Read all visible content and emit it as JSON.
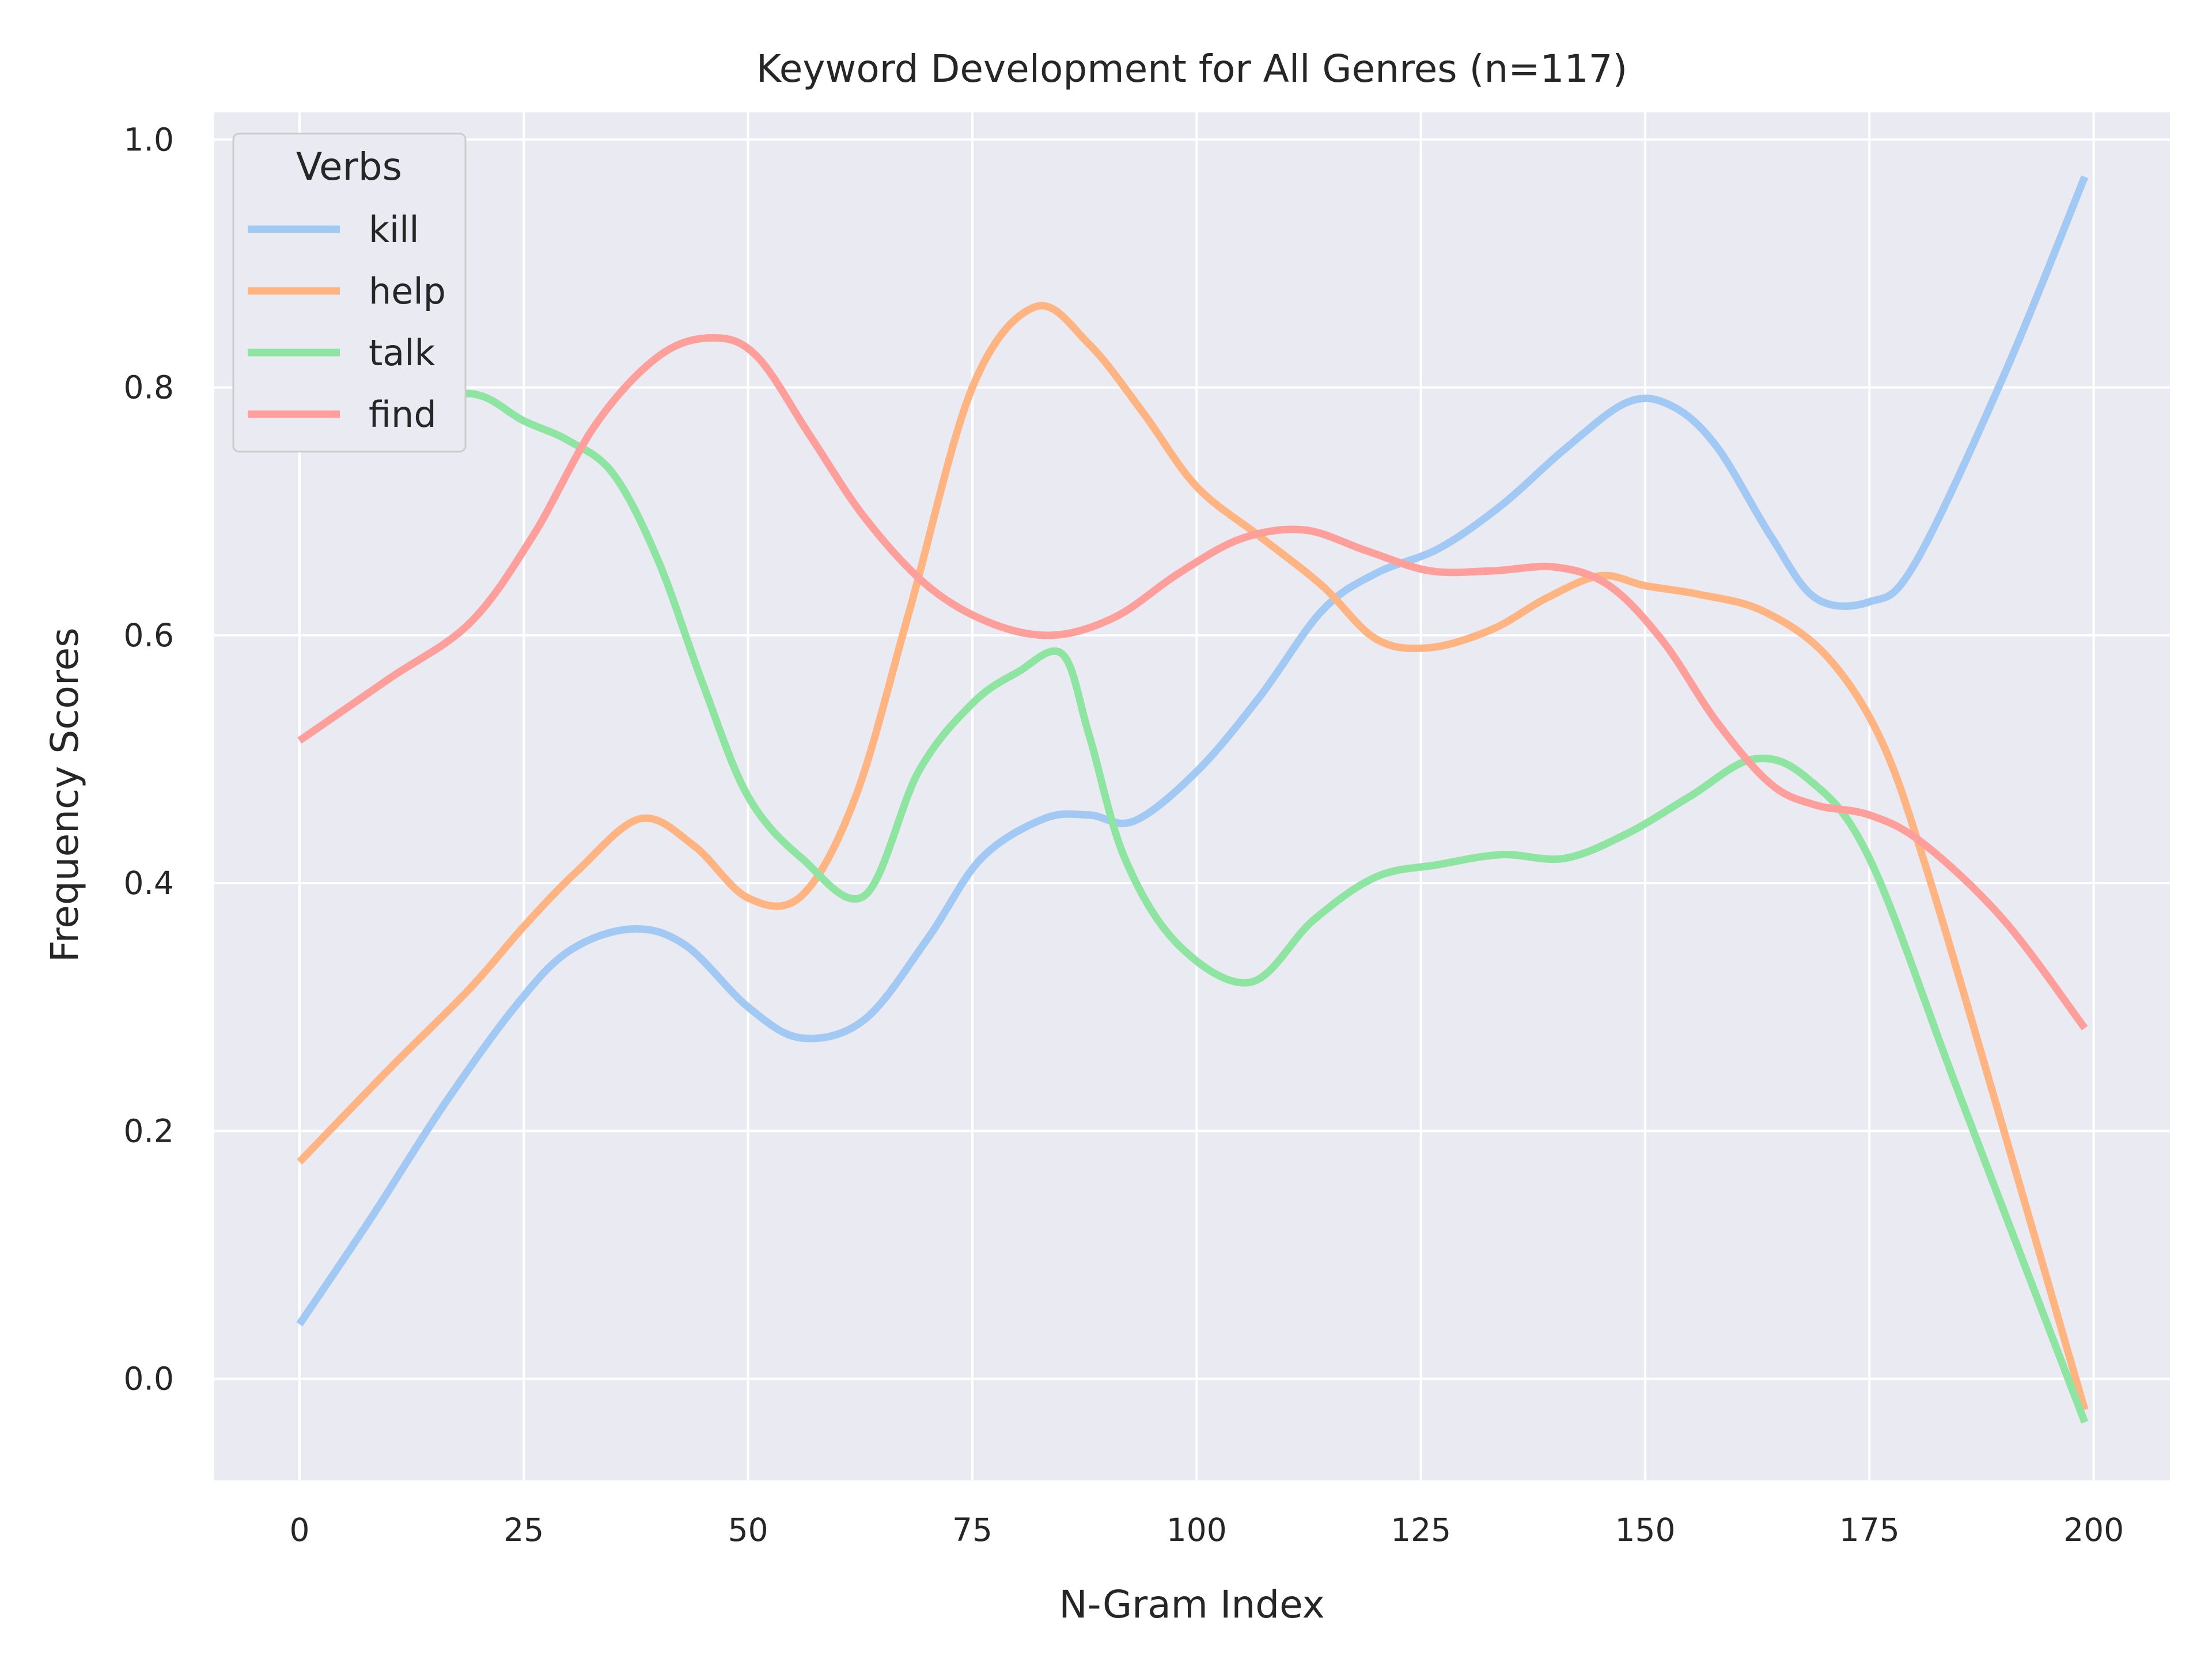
{
  "chart_data": {
    "type": "line",
    "title": "Keyword Development for All Genres (n=117)",
    "xlabel": "N-Gram Index",
    "ylabel": "Frequency Scores",
    "xlim": [
      -9.5,
      208.5
    ],
    "ylim": [
      -0.082,
      1.022
    ],
    "xticks": [
      0,
      25,
      50,
      75,
      100,
      125,
      150,
      175,
      200
    ],
    "xtick_labels": [
      "0",
      "25",
      "50",
      "75",
      "100",
      "125",
      "150",
      "175",
      "200"
    ],
    "yticks": [
      0.0,
      0.2,
      0.4,
      0.6,
      0.8,
      1.0
    ],
    "ytick_labels": [
      "0.0",
      "0.2",
      "0.4",
      "0.6",
      "0.8",
      "1.0"
    ],
    "grid": true,
    "background": "#eaeaf2",
    "legend": {
      "title": "Verbs",
      "placement": "upper-left"
    },
    "series": [
      {
        "name": "kill",
        "color": "#a1c9f4",
        "x": [
          0,
          8,
          16,
          24,
          30,
          37,
          43,
          50,
          56,
          63,
          70,
          76,
          83,
          88,
          93,
          100,
          107,
          114,
          120,
          127,
          134,
          141,
          148,
          153,
          158,
          164,
          169,
          175,
          180,
          190,
          199
        ],
        "y": [
          0.044,
          0.13,
          0.22,
          0.3,
          0.345,
          0.363,
          0.35,
          0.3,
          0.275,
          0.29,
          0.355,
          0.42,
          0.452,
          0.455,
          0.45,
          0.49,
          0.55,
          0.62,
          0.65,
          0.67,
          0.705,
          0.75,
          0.788,
          0.785,
          0.752,
          0.68,
          0.63,
          0.627,
          0.657,
          0.81,
          0.97
        ]
      },
      {
        "name": "help",
        "color": "#ffb482",
        "x": [
          0,
          10,
          19,
          25,
          31,
          38,
          44,
          50,
          56,
          62,
          68,
          75,
          82,
          88,
          94,
          100,
          107,
          114,
          120,
          126,
          133,
          139,
          145,
          150,
          156,
          163,
          170,
          176,
          181,
          190,
          199
        ],
        "y": [
          0.175,
          0.25,
          0.315,
          0.365,
          0.41,
          0.452,
          0.43,
          0.388,
          0.39,
          0.47,
          0.62,
          0.8,
          0.865,
          0.835,
          0.78,
          0.72,
          0.68,
          0.64,
          0.597,
          0.59,
          0.605,
          0.63,
          0.648,
          0.64,
          0.633,
          0.62,
          0.585,
          0.52,
          0.42,
          0.2,
          -0.025
        ]
      },
      {
        "name": "talk",
        "color": "#8de5a1",
        "x": [
          0,
          10,
          19,
          25,
          30,
          35,
          40,
          45,
          50,
          56,
          63,
          69,
          75,
          80,
          85,
          88,
          92,
          98,
          106,
          113,
          120,
          127,
          134,
          141,
          148,
          155,
          162,
          168,
          175,
          185,
          199
        ],
        "y": [
          0.762,
          0.78,
          0.795,
          0.773,
          0.757,
          0.73,
          0.66,
          0.56,
          0.47,
          0.42,
          0.39,
          0.49,
          0.545,
          0.57,
          0.585,
          0.52,
          0.42,
          0.35,
          0.32,
          0.37,
          0.405,
          0.415,
          0.423,
          0.42,
          0.44,
          0.47,
          0.5,
          0.485,
          0.42,
          0.23,
          -0.035
        ]
      },
      {
        "name": "find",
        "color": "#ff9f9b",
        "x": [
          0,
          10,
          19,
          26,
          33,
          40,
          46,
          51,
          57,
          63,
          70,
          77,
          84,
          91,
          98,
          105,
          112,
          119,
          126,
          133,
          140,
          146,
          152,
          158,
          164,
          169,
          175,
          181,
          190,
          199
        ],
        "y": [
          0.515,
          0.565,
          0.61,
          0.68,
          0.77,
          0.825,
          0.84,
          0.825,
          0.76,
          0.695,
          0.64,
          0.61,
          0.6,
          0.615,
          0.65,
          0.678,
          0.685,
          0.668,
          0.652,
          0.652,
          0.655,
          0.64,
          0.595,
          0.53,
          0.48,
          0.463,
          0.455,
          0.432,
          0.37,
          0.283
        ]
      }
    ]
  }
}
